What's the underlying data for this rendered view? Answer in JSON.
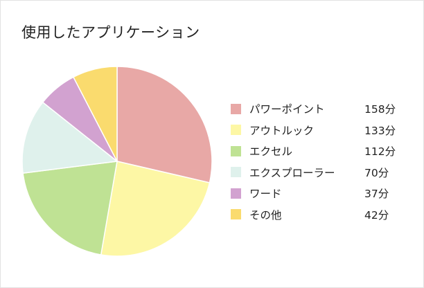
{
  "chart_data": {
    "type": "pie",
    "title": "使用したアプリケーション",
    "unit": "分",
    "legend_position": "right",
    "start": "top, clockwise",
    "series": [
      {
        "name": "パワーポイント",
        "value": 158,
        "label": "158分",
        "color": "#E8A8A6"
      },
      {
        "name": "アウトルック",
        "value": 133,
        "label": "133分",
        "color": "#FDF7A5"
      },
      {
        "name": "エクセル",
        "value": 112,
        "label": "112分",
        "color": "#BFE294"
      },
      {
        "name": "エクスプローラー",
        "value": 70,
        "label": "70分",
        "color": "#DFF1EC"
      },
      {
        "name": "ワード",
        "value": 37,
        "label": "37分",
        "color": "#D2A2D0"
      },
      {
        "name": "その他",
        "value": 42,
        "label": "42分",
        "color": "#FADB6E"
      }
    ]
  }
}
